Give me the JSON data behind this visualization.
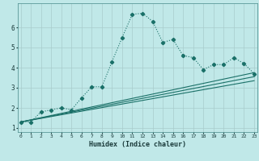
{
  "xlabel": "Humidex (Indice chaleur)",
  "bg_color": "#c0e8e8",
  "line_color": "#1a7068",
  "grid_color": "#a8cccc",
  "line1_x": [
    0,
    1,
    2,
    3,
    4,
    5,
    6,
    7,
    8,
    9,
    10,
    11,
    12,
    13,
    14,
    15,
    16,
    17,
    18,
    19,
    20,
    21,
    22,
    23
  ],
  "line1_y": [
    1.3,
    1.3,
    1.8,
    1.9,
    2.0,
    1.9,
    2.5,
    3.05,
    3.05,
    4.3,
    5.5,
    6.65,
    6.7,
    6.3,
    5.25,
    5.4,
    4.6,
    4.5,
    3.9,
    4.15,
    4.15,
    4.5,
    4.2,
    3.7
  ],
  "line2_x": [
    0,
    23
  ],
  "line2_y": [
    1.3,
    3.75
  ],
  "line3_x": [
    0,
    23
  ],
  "line3_y": [
    1.3,
    3.55
  ],
  "line4_x": [
    0,
    23
  ],
  "line4_y": [
    1.3,
    3.35
  ],
  "ylim": [
    0.8,
    7.2
  ],
  "xlim": [
    -0.3,
    23.3
  ],
  "yticks": [
    1,
    2,
    3,
    4,
    5,
    6
  ],
  "xticks": [
    0,
    1,
    2,
    3,
    4,
    5,
    6,
    7,
    8,
    9,
    10,
    11,
    12,
    13,
    14,
    15,
    16,
    17,
    18,
    19,
    20,
    21,
    22,
    23
  ]
}
